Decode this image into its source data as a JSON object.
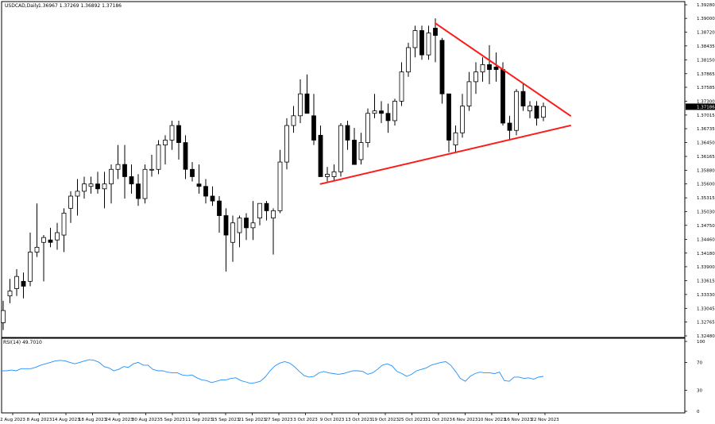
{
  "header": {
    "symbol": "USDCAD,Daily",
    "ohlc": "1.36967 1.37269 1.36892 1.37186"
  },
  "rsi_panel": {
    "label": "RSI(14) 49.7010"
  },
  "colors": {
    "background": "#ffffff",
    "candle": "#000000",
    "trendline": "#ff1a1a",
    "rsi_line": "#1e90ff",
    "current_price_tag": "#000000"
  },
  "chart_data": [
    {
      "type": "candlestick",
      "title": "USDCAD,Daily",
      "y_ticks": [
        "1.39280",
        "1.39000",
        "1.38720",
        "1.38435",
        "1.38150",
        "1.37865",
        "1.37585",
        "1.37300",
        "1.37015",
        "1.36735",
        "1.36450",
        "1.36165",
        "1.35880",
        "1.35600",
        "1.35315",
        "1.35030",
        "1.34750",
        "1.34460",
        "1.34180",
        "1.33900",
        "1.33615",
        "1.33330",
        "1.33045",
        "1.32765",
        "1.32480"
      ],
      "ylim": [
        1.3248,
        1.3928
      ],
      "current_price": "1.37186",
      "x_tick_labels": [
        "2 Aug 2023",
        "8 Aug 2023",
        "14 Aug 2023",
        "18 Aug 2023",
        "24 Aug 2023",
        "30 Aug 2023",
        "5 Sep 2023",
        "11 Sep 2023",
        "15 Sep 2023",
        "21 Sep 2023",
        "27 Sep 2023",
        "3 Oct 2023",
        "9 Oct 2023",
        "13 Oct 2023",
        "19 Oct 2023",
        "25 Oct 2023",
        "31 Oct 2023",
        "6 Nov 2023",
        "10 Nov 2023",
        "16 Nov 2023",
        "22 Nov 2023"
      ],
      "candles": [
        {
          "o": 1.3275,
          "h": 1.332,
          "l": 1.326,
          "c": 1.33
        },
        {
          "o": 1.333,
          "h": 1.3365,
          "l": 1.3315,
          "c": 1.334
        },
        {
          "o": 1.3345,
          "h": 1.3385,
          "l": 1.333,
          "c": 1.337
        },
        {
          "o": 1.336,
          "h": 1.3378,
          "l": 1.3325,
          "c": 1.335
        },
        {
          "o": 1.336,
          "h": 1.346,
          "l": 1.335,
          "c": 1.342
        },
        {
          "o": 1.342,
          "h": 1.352,
          "l": 1.341,
          "c": 1.343
        },
        {
          "o": 1.344,
          "h": 1.3455,
          "l": 1.336,
          "c": 1.345
        },
        {
          "o": 1.3445,
          "h": 1.347,
          "l": 1.343,
          "c": 1.344
        },
        {
          "o": 1.3445,
          "h": 1.348,
          "l": 1.3425,
          "c": 1.346
        },
        {
          "o": 1.3455,
          "h": 1.351,
          "l": 1.342,
          "c": 1.35
        },
        {
          "o": 1.351,
          "h": 1.3545,
          "l": 1.348,
          "c": 1.3535
        },
        {
          "o": 1.3535,
          "h": 1.357,
          "l": 1.3495,
          "c": 1.3545
        },
        {
          "o": 1.3545,
          "h": 1.3575,
          "l": 1.353,
          "c": 1.356
        },
        {
          "o": 1.3555,
          "h": 1.3575,
          "l": 1.354,
          "c": 1.356
        },
        {
          "o": 1.356,
          "h": 1.3585,
          "l": 1.354,
          "c": 1.355
        },
        {
          "o": 1.355,
          "h": 1.3585,
          "l": 1.351,
          "c": 1.356
        },
        {
          "o": 1.356,
          "h": 1.36,
          "l": 1.352,
          "c": 1.359
        },
        {
          "o": 1.359,
          "h": 1.364,
          "l": 1.357,
          "c": 1.36
        },
        {
          "o": 1.36,
          "h": 1.364,
          "l": 1.353,
          "c": 1.3575
        },
        {
          "o": 1.3575,
          "h": 1.36,
          "l": 1.354,
          "c": 1.356
        },
        {
          "o": 1.356,
          "h": 1.358,
          "l": 1.3515,
          "c": 1.353
        },
        {
          "o": 1.353,
          "h": 1.36,
          "l": 1.352,
          "c": 1.359
        },
        {
          "o": 1.359,
          "h": 1.362,
          "l": 1.3575,
          "c": 1.359
        },
        {
          "o": 1.359,
          "h": 1.365,
          "l": 1.358,
          "c": 1.364
        },
        {
          "o": 1.364,
          "h": 1.366,
          "l": 1.36,
          "c": 1.365
        },
        {
          "o": 1.365,
          "h": 1.369,
          "l": 1.363,
          "c": 1.368
        },
        {
          "o": 1.368,
          "h": 1.369,
          "l": 1.361,
          "c": 1.3645
        },
        {
          "o": 1.3645,
          "h": 1.366,
          "l": 1.357,
          "c": 1.359
        },
        {
          "o": 1.359,
          "h": 1.3605,
          "l": 1.3565,
          "c": 1.3575
        },
        {
          "o": 1.356,
          "h": 1.36,
          "l": 1.354,
          "c": 1.3555
        },
        {
          "o": 1.3555,
          "h": 1.357,
          "l": 1.352,
          "c": 1.3535
        },
        {
          "o": 1.3535,
          "h": 1.3555,
          "l": 1.3515,
          "c": 1.3525
        },
        {
          "o": 1.3525,
          "h": 1.3535,
          "l": 1.346,
          "c": 1.3495
        },
        {
          "o": 1.3495,
          "h": 1.351,
          "l": 1.338,
          "c": 1.3455
        },
        {
          "o": 1.344,
          "h": 1.3495,
          "l": 1.34,
          "c": 1.348
        },
        {
          "o": 1.346,
          "h": 1.3495,
          "l": 1.343,
          "c": 1.349
        },
        {
          "o": 1.349,
          "h": 1.35,
          "l": 1.3445,
          "c": 1.347
        },
        {
          "o": 1.347,
          "h": 1.3525,
          "l": 1.3445,
          "c": 1.348
        },
        {
          "o": 1.349,
          "h": 1.352,
          "l": 1.3475,
          "c": 1.352
        },
        {
          "o": 1.352,
          "h": 1.3525,
          "l": 1.3485,
          "c": 1.3505
        },
        {
          "o": 1.349,
          "h": 1.351,
          "l": 1.3415,
          "c": 1.3505
        },
        {
          "o": 1.3505,
          "h": 1.363,
          "l": 1.35,
          "c": 1.3605
        },
        {
          "o": 1.3605,
          "h": 1.3695,
          "l": 1.359,
          "c": 1.368
        },
        {
          "o": 1.368,
          "h": 1.372,
          "l": 1.3665,
          "c": 1.37
        },
        {
          "o": 1.37,
          "h": 1.3775,
          "l": 1.3685,
          "c": 1.3745
        },
        {
          "o": 1.3745,
          "h": 1.3785,
          "l": 1.3705,
          "c": 1.3705
        },
        {
          "o": 1.37,
          "h": 1.3745,
          "l": 1.364,
          "c": 1.365
        },
        {
          "o": 1.366,
          "h": 1.368,
          "l": 1.3575,
          "c": 1.3575
        },
        {
          "o": 1.3575,
          "h": 1.3595,
          "l": 1.3565,
          "c": 1.358
        },
        {
          "o": 1.3575,
          "h": 1.36,
          "l": 1.3565,
          "c": 1.3585
        },
        {
          "o": 1.3585,
          "h": 1.3685,
          "l": 1.3575,
          "c": 1.368
        },
        {
          "o": 1.368,
          "h": 1.369,
          "l": 1.363,
          "c": 1.365
        },
        {
          "o": 1.365,
          "h": 1.3675,
          "l": 1.36,
          "c": 1.36
        },
        {
          "o": 1.361,
          "h": 1.3665,
          "l": 1.36,
          "c": 1.3645
        },
        {
          "o": 1.3645,
          "h": 1.3715,
          "l": 1.3635,
          "c": 1.3705
        },
        {
          "o": 1.3705,
          "h": 1.3745,
          "l": 1.3695,
          "c": 1.371
        },
        {
          "o": 1.371,
          "h": 1.373,
          "l": 1.3685,
          "c": 1.3705
        },
        {
          "o": 1.3705,
          "h": 1.3725,
          "l": 1.3665,
          "c": 1.369
        },
        {
          "o": 1.369,
          "h": 1.3735,
          "l": 1.368,
          "c": 1.373
        },
        {
          "o": 1.373,
          "h": 1.381,
          "l": 1.372,
          "c": 1.379
        },
        {
          "o": 1.379,
          "h": 1.385,
          "l": 1.378,
          "c": 1.384
        },
        {
          "o": 1.384,
          "h": 1.3885,
          "l": 1.382,
          "c": 1.3875
        },
        {
          "o": 1.3875,
          "h": 1.3885,
          "l": 1.3815,
          "c": 1.3825
        },
        {
          "o": 1.3825,
          "h": 1.3885,
          "l": 1.3815,
          "c": 1.387
        },
        {
          "o": 1.388,
          "h": 1.39,
          "l": 1.381,
          "c": 1.3865
        },
        {
          "o": 1.3855,
          "h": 1.386,
          "l": 1.3725,
          "c": 1.3745
        },
        {
          "o": 1.3745,
          "h": 1.3745,
          "l": 1.3625,
          "c": 1.365
        },
        {
          "o": 1.364,
          "h": 1.368,
          "l": 1.3625,
          "c": 1.3665
        },
        {
          "o": 1.3665,
          "h": 1.3745,
          "l": 1.3655,
          "c": 1.372
        },
        {
          "o": 1.372,
          "h": 1.379,
          "l": 1.371,
          "c": 1.377
        },
        {
          "o": 1.377,
          "h": 1.381,
          "l": 1.3745,
          "c": 1.379
        },
        {
          "o": 1.379,
          "h": 1.382,
          "l": 1.377,
          "c": 1.3805
        },
        {
          "o": 1.3805,
          "h": 1.3845,
          "l": 1.3765,
          "c": 1.3795
        },
        {
          "o": 1.38,
          "h": 1.383,
          "l": 1.377,
          "c": 1.3795
        },
        {
          "o": 1.3795,
          "h": 1.381,
          "l": 1.368,
          "c": 1.3685
        },
        {
          "o": 1.3685,
          "h": 1.37,
          "l": 1.365,
          "c": 1.367
        },
        {
          "o": 1.367,
          "h": 1.3755,
          "l": 1.366,
          "c": 1.375
        },
        {
          "o": 1.375,
          "h": 1.3765,
          "l": 1.371,
          "c": 1.372
        },
        {
          "o": 1.371,
          "h": 1.373,
          "l": 1.3695,
          "c": 1.372
        },
        {
          "o": 1.372,
          "h": 1.373,
          "l": 1.368,
          "c": 1.3695
        },
        {
          "o": 1.3697,
          "h": 1.3727,
          "l": 1.3689,
          "c": 1.3719
        }
      ],
      "trendlines": [
        {
          "name": "descending resistance",
          "points": [
            [
              64,
              1.389
            ],
            [
              84,
              1.37
            ]
          ]
        },
        {
          "name": "ascending support",
          "points": [
            [
              47,
              1.356
            ],
            [
              84,
              1.368
            ]
          ]
        }
      ]
    },
    {
      "type": "line",
      "title": "RSI(14) 49.7010",
      "y_ticks": [
        "100",
        "70",
        "30",
        "0"
      ],
      "ylim": [
        0,
        100
      ],
      "values": [
        58,
        58,
        59,
        58,
        61,
        61,
        61,
        63,
        66,
        68,
        70,
        72,
        73,
        72,
        70,
        68,
        70,
        72,
        74,
        73,
        70,
        64,
        62,
        58,
        60,
        64,
        63,
        68,
        70,
        66,
        66,
        60,
        58,
        58,
        56,
        55,
        55,
        52,
        51,
        52,
        48,
        45,
        44,
        41,
        43,
        45,
        45,
        47,
        48,
        44,
        42,
        40,
        41,
        43,
        49,
        58,
        65,
        69,
        71,
        69,
        64,
        57,
        51,
        49,
        50,
        55,
        57,
        55,
        54,
        53,
        54,
        56,
        58,
        58,
        57,
        53,
        55,
        60,
        66,
        68,
        65,
        57,
        54,
        50,
        53,
        58,
        60,
        62,
        66,
        68,
        70,
        71,
        66,
        57,
        47,
        43,
        50,
        54,
        56,
        55,
        55,
        54,
        56,
        44,
        43,
        49,
        49,
        47,
        48,
        46,
        49,
        50
      ]
    }
  ]
}
